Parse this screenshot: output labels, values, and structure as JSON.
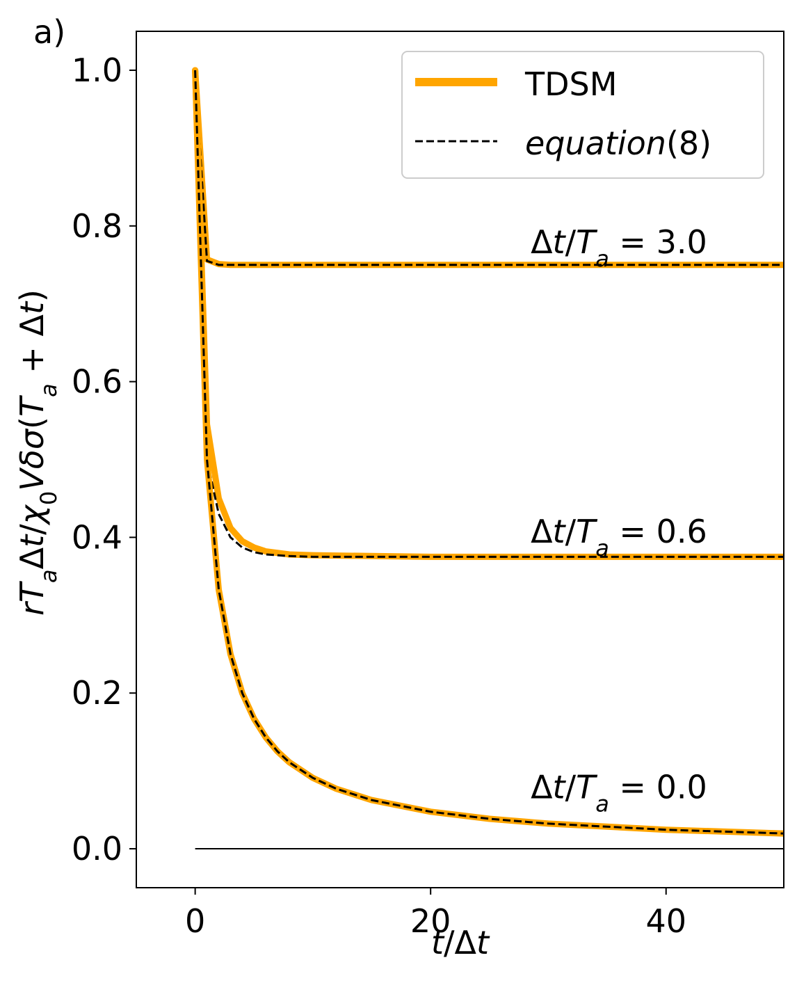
{
  "panel_label": "a)",
  "chart_data": {
    "type": "line",
    "xlabel": "t/Δt",
    "ylabel": "rTₐΔt/χ₀Vδσ(Tₐ + Δt)",
    "xlim": [
      -5,
      50
    ],
    "ylim": [
      -0.05,
      1.05
    ],
    "xticks": [
      0,
      20,
      40
    ],
    "yticks": [
      0.0,
      0.2,
      0.4,
      0.6,
      0.8,
      1.0
    ],
    "x_tick_labels": [
      "0",
      "20",
      "40"
    ],
    "y_tick_labels": [
      "0.0",
      "0.2",
      "0.4",
      "0.6",
      "0.8",
      "1.0"
    ],
    "grid": false,
    "legend_position": "top-right",
    "colors": {
      "tdsm": "#FFA500",
      "equation": "#000000",
      "zero_line": "#000000"
    },
    "legend": [
      {
        "label": "TDSM",
        "style": "solid-thick",
        "color": "#FFA500"
      },
      {
        "label": "equation(8)",
        "style": "dashed",
        "color": "#000000"
      }
    ],
    "annotations": [
      {
        "text": "Δt/Tₐ = 3.0",
        "x": 28.5,
        "y": 0.765
      },
      {
        "text": "Δt/Tₐ = 0.6",
        "x": 28.5,
        "y": 0.393
      },
      {
        "text": "Δt/Tₐ = 0.0",
        "x": 28.5,
        "y": 0.065
      }
    ],
    "series": [
      {
        "group": "Δt/Tₐ = 3.0",
        "tdsm": {
          "x": [
            0,
            1,
            2,
            3,
            5,
            10,
            20,
            30,
            40,
            50
          ],
          "y": [
            1.0,
            0.757,
            0.751,
            0.75,
            0.75,
            0.75,
            0.75,
            0.75,
            0.75,
            0.75
          ]
        },
        "equation": {
          "x": [
            0,
            1,
            2,
            3,
            5,
            10,
            20,
            30,
            40,
            50
          ],
          "y": [
            1.0,
            0.755,
            0.75,
            0.75,
            0.75,
            0.75,
            0.75,
            0.75,
            0.75,
            0.75
          ]
        }
      },
      {
        "group": "Δt/Tₐ = 0.6",
        "tdsm": {
          "x": [
            0,
            1,
            2,
            3,
            4,
            5,
            6,
            8,
            10,
            15,
            20,
            30,
            40,
            50
          ],
          "y": [
            1.0,
            0.545,
            0.45,
            0.412,
            0.395,
            0.387,
            0.382,
            0.378,
            0.377,
            0.376,
            0.375,
            0.375,
            0.375,
            0.375
          ]
        },
        "equation": {
          "x": [
            0,
            1,
            2,
            3,
            4,
            5,
            6,
            8,
            10,
            15,
            20,
            30,
            40,
            50
          ],
          "y": [
            1.0,
            0.5,
            0.43,
            0.4,
            0.387,
            0.381,
            0.378,
            0.376,
            0.375,
            0.375,
            0.375,
            0.375,
            0.375,
            0.375
          ]
        }
      },
      {
        "group": "Δt/Tₐ = 0.0",
        "tdsm": {
          "x": [
            0,
            1,
            2,
            3,
            4,
            5,
            6,
            7,
            8,
            10,
            12,
            15,
            20,
            25,
            30,
            40,
            50
          ],
          "y": [
            1.0,
            0.5,
            0.333,
            0.25,
            0.2,
            0.167,
            0.143,
            0.125,
            0.111,
            0.091,
            0.077,
            0.0625,
            0.0476,
            0.0385,
            0.0323,
            0.0244,
            0.0196
          ]
        },
        "equation": {
          "x": [
            0,
            1,
            2,
            3,
            4,
            5,
            6,
            7,
            8,
            10,
            12,
            15,
            20,
            25,
            30,
            40,
            50
          ],
          "y": [
            1.0,
            0.5,
            0.333,
            0.25,
            0.2,
            0.167,
            0.143,
            0.125,
            0.111,
            0.091,
            0.077,
            0.0625,
            0.0476,
            0.0385,
            0.0323,
            0.0244,
            0.0196
          ]
        }
      }
    ],
    "zero_line": {
      "x": [
        0,
        50
      ],
      "y": [
        0,
        0
      ]
    }
  }
}
